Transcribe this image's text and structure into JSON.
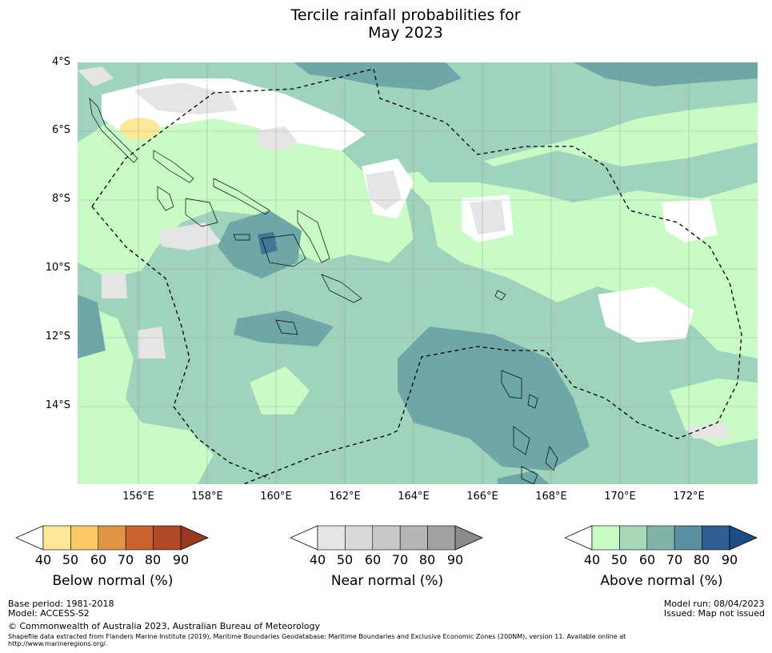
{
  "title": {
    "line1": "Tercile rainfall probabilities for",
    "line2": "May 2023"
  },
  "map": {
    "lat_labels": [
      "4°S",
      "6°S",
      "8°S",
      "10°S",
      "12°S",
      "14°S"
    ],
    "lon_labels": [
      "156°E",
      "158°E",
      "160°E",
      "162°E",
      "164°E",
      "166°E",
      "168°E",
      "170°E",
      "172°E"
    ]
  },
  "colors": {
    "above_50": "#c9fbc7",
    "above_60": "#9fd3bc",
    "above_70": "#6fa6a7",
    "above_80": "#3d7794",
    "near_40": "#e5e5e5",
    "below_40": "#fde89a"
  },
  "legends": [
    {
      "title": "Below normal (%)",
      "ticks": [
        "40",
        "50",
        "60",
        "70",
        "80",
        "90"
      ],
      "colors": [
        "#ffffff",
        "#fde89a",
        "#fcc964",
        "#e09448",
        "#ca6232",
        "#b04a28",
        "#993921"
      ]
    },
    {
      "title": "Near normal (%)",
      "ticks": [
        "40",
        "50",
        "60",
        "70",
        "80",
        "90"
      ],
      "colors": [
        "#ffffff",
        "#e5e5e5",
        "#d9d9d9",
        "#c9c9c9",
        "#b5b5b5",
        "#a2a2a2",
        "#8b8b8b"
      ]
    },
    {
      "title": "Above normal (%)",
      "ticks": [
        "40",
        "50",
        "60",
        "70",
        "80",
        "90"
      ],
      "colors": [
        "#ffffff",
        "#c9fbc7",
        "#a8d8b6",
        "#82b3a9",
        "#5a90a0",
        "#2f5f92",
        "#1e4b80"
      ]
    }
  ],
  "footer": {
    "base_period": "Base period: 1981-2018",
    "model": "Model: ACCESS-S2",
    "model_run": "Model run: 08/04/2023",
    "issued": "Issued: Map not issued",
    "copyright": "© Commonwealth of Australia 2023, Australian Bureau of Meteorology",
    "shapefile_line1": "Shapefile data extracted from Flanders Marine Institute (2019), Maritime Boundaries Geodatabase: Maritime Boundaries and Exclusive Economic Zones (200NM), version 11. Available online at",
    "shapefile_line2": "http://www.marineregions.org/."
  }
}
